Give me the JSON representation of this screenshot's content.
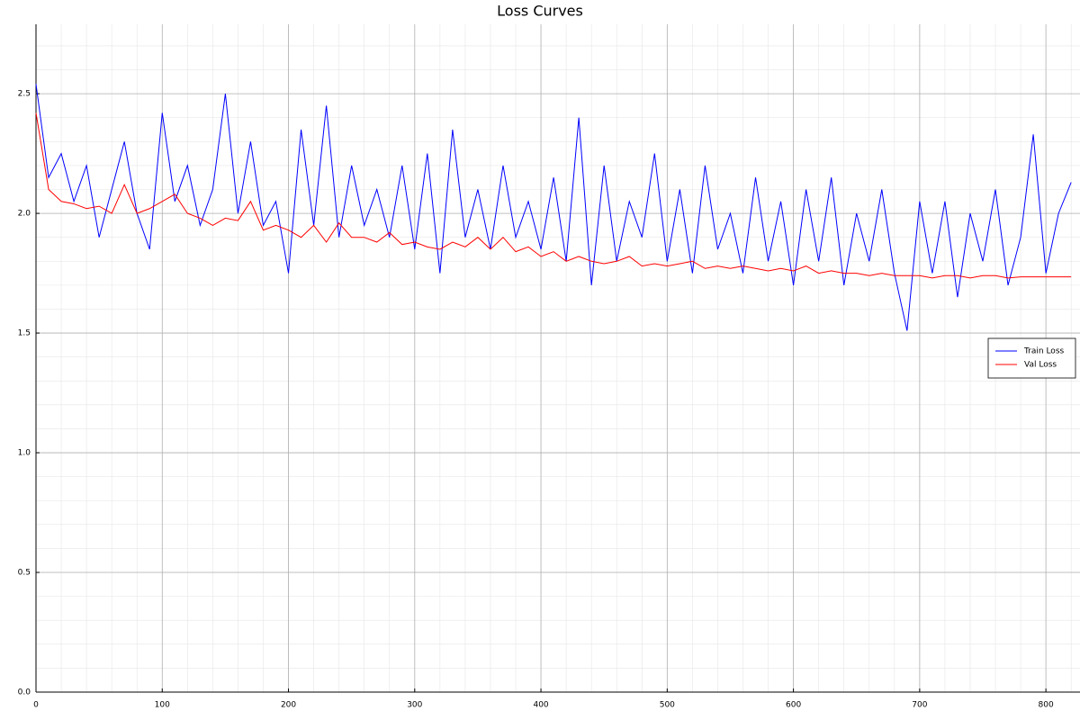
{
  "chart_data": {
    "type": "line",
    "title": "Loss Curves",
    "x": [
      0,
      10,
      20,
      30,
      40,
      50,
      60,
      70,
      80,
      90,
      100,
      110,
      120,
      130,
      140,
      150,
      160,
      170,
      180,
      190,
      200,
      210,
      220,
      230,
      240,
      250,
      260,
      270,
      280,
      290,
      300,
      310,
      320,
      330,
      340,
      350,
      360,
      370,
      380,
      390,
      400,
      410,
      420,
      430,
      440,
      450,
      460,
      470,
      480,
      490,
      500,
      510,
      520,
      530,
      540,
      550,
      560,
      570,
      580,
      590,
      600,
      610,
      620,
      630,
      640,
      650,
      660,
      670,
      680,
      690,
      700,
      710,
      720,
      730,
      740,
      750,
      760,
      770,
      780,
      790,
      800,
      810,
      820
    ],
    "series": [
      {
        "name": "Train Loss",
        "color": "#0000ff",
        "values": [
          2.54,
          2.15,
          2.25,
          2.05,
          2.2,
          1.9,
          2.1,
          2.3,
          2.0,
          1.85,
          2.42,
          2.05,
          2.2,
          1.95,
          2.1,
          2.5,
          2.0,
          2.3,
          1.95,
          2.05,
          1.75,
          2.35,
          1.95,
          2.45,
          1.9,
          2.2,
          1.95,
          2.1,
          1.9,
          2.2,
          1.85,
          2.25,
          1.75,
          2.35,
          1.9,
          2.1,
          1.85,
          2.2,
          1.9,
          2.05,
          1.85,
          2.15,
          1.8,
          2.4,
          1.7,
          2.2,
          1.8,
          2.05,
          1.9,
          2.25,
          1.8,
          2.1,
          1.75,
          2.2,
          1.85,
          2.0,
          1.75,
          2.15,
          1.8,
          2.05,
          1.7,
          2.1,
          1.8,
          2.15,
          1.7,
          2.0,
          1.8,
          2.1,
          1.75,
          1.51,
          2.05,
          1.75,
          2.05,
          1.65,
          2.0,
          1.8,
          2.1,
          1.7,
          1.9,
          2.33,
          1.75,
          2.0,
          2.13
        ]
      },
      {
        "name": "Val Loss",
        "color": "#ff0000",
        "values": [
          2.42,
          2.1,
          2.05,
          2.04,
          2.02,
          2.03,
          2.0,
          2.12,
          2.0,
          2.02,
          2.05,
          2.08,
          2.0,
          1.98,
          1.95,
          1.98,
          1.97,
          2.05,
          1.93,
          1.95,
          1.93,
          1.9,
          1.95,
          1.88,
          1.96,
          1.9,
          1.9,
          1.88,
          1.92,
          1.87,
          1.88,
          1.86,
          1.85,
          1.88,
          1.86,
          1.9,
          1.85,
          1.9,
          1.84,
          1.86,
          1.82,
          1.84,
          1.8,
          1.82,
          1.8,
          1.79,
          1.8,
          1.82,
          1.78,
          1.79,
          1.78,
          1.79,
          1.8,
          1.77,
          1.78,
          1.77,
          1.78,
          1.77,
          1.76,
          1.77,
          1.76,
          1.78,
          1.75,
          1.76,
          1.75,
          1.75,
          1.74,
          1.75,
          1.74,
          1.74,
          1.74,
          1.73,
          1.74,
          1.74,
          1.73,
          1.74,
          1.74,
          1.73,
          1.735,
          1.735,
          1.735,
          1.735,
          1.735
        ]
      }
    ],
    "xlim": [
      0,
      827
    ],
    "ylim": [
      0,
      2.79
    ],
    "xticks": [
      0,
      100,
      200,
      300,
      400,
      500,
      600,
      700,
      800
    ],
    "yticks": [
      {
        "value": 0,
        "label": "0.0"
      },
      0.5,
      {
        "value": 1,
        "label": "1.0"
      },
      1.5,
      {
        "value": 2,
        "label": "2.0"
      },
      2.5
    ],
    "grid": true,
    "minor_grid": true,
    "legend": "right"
  }
}
